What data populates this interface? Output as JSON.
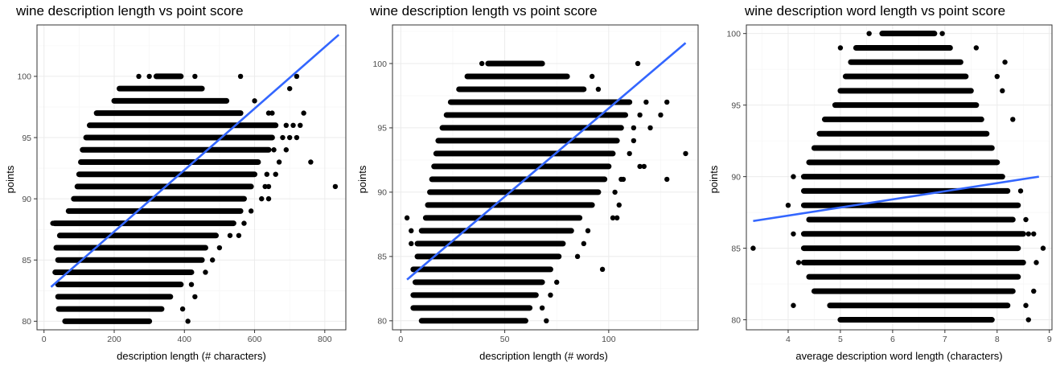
{
  "colors": {
    "points": "#000000",
    "fit_line": "#3366FF"
  },
  "chart_data": [
    {
      "type": "scatter",
      "title": "wine description length vs point score",
      "xlabel": "description length (# characters)",
      "ylabel": "points",
      "xlim": [
        -20,
        860
      ],
      "ylim": [
        79.3,
        104.2
      ],
      "xticks": [
        0,
        200,
        400,
        600,
        800
      ],
      "yticks": [
        80,
        85,
        90,
        95,
        100
      ],
      "grid": true,
      "fit_line": {
        "x": [
          20,
          840
        ],
        "y": [
          82.8,
          103.4
        ]
      },
      "bands": [
        {
          "y": 80,
          "xmin": 60,
          "xmax": 300
        },
        {
          "y": 81,
          "xmin": 42,
          "xmax": 335
        },
        {
          "y": 82,
          "xmin": 40,
          "xmax": 360
        },
        {
          "y": 83,
          "xmin": 40,
          "xmax": 390
        },
        {
          "y": 84,
          "xmin": 32,
          "xmax": 420
        },
        {
          "y": 85,
          "xmin": 40,
          "xmax": 450
        },
        {
          "y": 86,
          "xmin": 35,
          "xmax": 460
        },
        {
          "y": 87,
          "xmin": 45,
          "xmax": 490
        },
        {
          "y": 88,
          "xmin": 30,
          "xmax": 540
        },
        {
          "y": 89,
          "xmin": 70,
          "xmax": 560
        },
        {
          "y": 90,
          "xmin": 85,
          "xmax": 570
        },
        {
          "y": 91,
          "xmin": 95,
          "xmax": 590
        },
        {
          "y": 92,
          "xmin": 100,
          "xmax": 600
        },
        {
          "y": 93,
          "xmin": 105,
          "xmax": 610
        },
        {
          "y": 94,
          "xmin": 110,
          "xmax": 640
        },
        {
          "y": 95,
          "xmin": 120,
          "xmax": 650
        },
        {
          "y": 96,
          "xmin": 130,
          "xmax": 660
        },
        {
          "y": 97,
          "xmin": 150,
          "xmax": 560
        },
        {
          "y": 98,
          "xmin": 200,
          "xmax": 520
        },
        {
          "y": 99,
          "xmin": 215,
          "xmax": 450
        },
        {
          "y": 100,
          "xmin": 320,
          "xmax": 390
        }
      ],
      "points": [
        {
          "x": 25,
          "y": 88
        },
        {
          "x": 35,
          "y": 88
        },
        {
          "x": 45,
          "y": 84
        },
        {
          "x": 410,
          "y": 80
        },
        {
          "x": 395,
          "y": 81
        },
        {
          "x": 430,
          "y": 82
        },
        {
          "x": 420,
          "y": 83
        },
        {
          "x": 460,
          "y": 84
        },
        {
          "x": 480,
          "y": 85
        },
        {
          "x": 500,
          "y": 86
        },
        {
          "x": 530,
          "y": 87
        },
        {
          "x": 555,
          "y": 87
        },
        {
          "x": 570,
          "y": 88
        },
        {
          "x": 590,
          "y": 89
        },
        {
          "x": 620,
          "y": 90
        },
        {
          "x": 640,
          "y": 90
        },
        {
          "x": 630,
          "y": 91
        },
        {
          "x": 635,
          "y": 92
        },
        {
          "x": 660,
          "y": 92
        },
        {
          "x": 670,
          "y": 93
        },
        {
          "x": 655,
          "y": 94
        },
        {
          "x": 690,
          "y": 94
        },
        {
          "x": 680,
          "y": 95
        },
        {
          "x": 700,
          "y": 95
        },
        {
          "x": 690,
          "y": 96
        },
        {
          "x": 710,
          "y": 96
        },
        {
          "x": 730,
          "y": 96
        },
        {
          "x": 640,
          "y": 97
        },
        {
          "x": 650,
          "y": 97
        },
        {
          "x": 740,
          "y": 97
        },
        {
          "x": 600,
          "y": 98
        },
        {
          "x": 700,
          "y": 99
        },
        {
          "x": 430,
          "y": 100
        },
        {
          "x": 560,
          "y": 100
        },
        {
          "x": 720,
          "y": 100
        },
        {
          "x": 270,
          "y": 100
        },
        {
          "x": 300,
          "y": 100
        },
        {
          "x": 760,
          "y": 93
        },
        {
          "x": 830,
          "y": 91
        },
        {
          "x": 640,
          "y": 91
        },
        {
          "x": 720,
          "y": 95
        }
      ]
    },
    {
      "type": "scatter",
      "title": "wine description length vs point score",
      "xlabel": "description length (# words)",
      "ylabel": "points",
      "xlim": [
        -4,
        143
      ],
      "ylim": [
        79.3,
        103.0
      ],
      "xticks": [
        0,
        50,
        100
      ],
      "yticks": [
        80,
        85,
        90,
        95,
        100
      ],
      "grid": true,
      "fit_line": {
        "x": [
          3,
          137
        ],
        "y": [
          83.2,
          101.6
        ]
      },
      "bands": [
        {
          "y": 80,
          "xmin": 10,
          "xmax": 60
        },
        {
          "y": 81,
          "xmin": 6,
          "xmax": 62
        },
        {
          "y": 82,
          "xmin": 6,
          "xmax": 65
        },
        {
          "y": 83,
          "xmin": 7,
          "xmax": 68
        },
        {
          "y": 84,
          "xmin": 6,
          "xmax": 72
        },
        {
          "y": 85,
          "xmin": 8,
          "xmax": 76
        },
        {
          "y": 86,
          "xmin": 8,
          "xmax": 78
        },
        {
          "y": 87,
          "xmin": 10,
          "xmax": 82
        },
        {
          "y": 88,
          "xmin": 12,
          "xmax": 86
        },
        {
          "y": 89,
          "xmin": 13,
          "xmax": 92
        },
        {
          "y": 90,
          "xmin": 14,
          "xmax": 95
        },
        {
          "y": 91,
          "xmin": 15,
          "xmax": 98
        },
        {
          "y": 92,
          "xmin": 16,
          "xmax": 100
        },
        {
          "y": 93,
          "xmin": 17,
          "xmax": 102
        },
        {
          "y": 94,
          "xmin": 18,
          "xmax": 104
        },
        {
          "y": 95,
          "xmin": 20,
          "xmax": 106
        },
        {
          "y": 96,
          "xmin": 22,
          "xmax": 108
        },
        {
          "y": 97,
          "xmin": 24,
          "xmax": 110
        },
        {
          "y": 98,
          "xmin": 28,
          "xmax": 88
        },
        {
          "y": 99,
          "xmin": 32,
          "xmax": 80
        },
        {
          "y": 100,
          "xmin": 42,
          "xmax": 68
        }
      ],
      "points": [
        {
          "x": 3,
          "y": 88
        },
        {
          "x": 5,
          "y": 86
        },
        {
          "x": 5,
          "y": 87
        },
        {
          "x": 70,
          "y": 80
        },
        {
          "x": 68,
          "y": 81
        },
        {
          "x": 72,
          "y": 82
        },
        {
          "x": 75,
          "y": 83
        },
        {
          "x": 97,
          "y": 84
        },
        {
          "x": 85,
          "y": 85
        },
        {
          "x": 88,
          "y": 86
        },
        {
          "x": 90,
          "y": 87
        },
        {
          "x": 102,
          "y": 88
        },
        {
          "x": 105,
          "y": 89
        },
        {
          "x": 103,
          "y": 90
        },
        {
          "x": 107,
          "y": 91
        },
        {
          "x": 115,
          "y": 92
        },
        {
          "x": 110,
          "y": 93
        },
        {
          "x": 112,
          "y": 94
        },
        {
          "x": 112,
          "y": 95
        },
        {
          "x": 120,
          "y": 95
        },
        {
          "x": 115,
          "y": 96
        },
        {
          "x": 125,
          "y": 96
        },
        {
          "x": 118,
          "y": 97
        },
        {
          "x": 128,
          "y": 97
        },
        {
          "x": 95,
          "y": 98
        },
        {
          "x": 92,
          "y": 99
        },
        {
          "x": 114,
          "y": 100
        },
        {
          "x": 137,
          "y": 93
        },
        {
          "x": 128,
          "y": 91
        },
        {
          "x": 104,
          "y": 88
        },
        {
          "x": 117,
          "y": 92
        },
        {
          "x": 106,
          "y": 91
        },
        {
          "x": 39,
          "y": 100
        },
        {
          "x": 64,
          "y": 93
        },
        {
          "x": 106,
          "y": 95
        }
      ]
    },
    {
      "type": "scatter",
      "title": "wine description word length vs point score",
      "xlabel": "average description word length (characters)",
      "ylabel": "points",
      "xlim": [
        3.2,
        9.05
      ],
      "ylim": [
        79.3,
        100.6
      ],
      "xticks": [
        4,
        5,
        6,
        7,
        8,
        9
      ],
      "yticks": [
        80,
        85,
        90,
        95,
        100
      ],
      "grid": true,
      "fit_line": {
        "x": [
          3.33,
          8.8
        ],
        "y": [
          86.9,
          90.0
        ]
      },
      "bands": [
        {
          "y": 80,
          "xmin": 5.0,
          "xmax": 7.9
        },
        {
          "y": 81,
          "xmin": 4.8,
          "xmax": 8.2
        },
        {
          "y": 82,
          "xmin": 4.5,
          "xmax": 8.3
        },
        {
          "y": 83,
          "xmin": 4.4,
          "xmax": 8.4
        },
        {
          "y": 84,
          "xmin": 4.3,
          "xmax": 8.5
        },
        {
          "y": 85,
          "xmin": 4.3,
          "xmax": 8.4
        },
        {
          "y": 86,
          "xmin": 4.3,
          "xmax": 8.5
        },
        {
          "y": 87,
          "xmin": 4.4,
          "xmax": 8.3
        },
        {
          "y": 88,
          "xmin": 4.3,
          "xmax": 8.4
        },
        {
          "y": 89,
          "xmin": 4.3,
          "xmax": 8.2
        },
        {
          "y": 90,
          "xmin": 4.3,
          "xmax": 8.1
        },
        {
          "y": 91,
          "xmin": 4.4,
          "xmax": 8.0
        },
        {
          "y": 92,
          "xmin": 4.5,
          "xmax": 7.9
        },
        {
          "y": 93,
          "xmin": 4.6,
          "xmax": 7.8
        },
        {
          "y": 94,
          "xmin": 4.7,
          "xmax": 7.7
        },
        {
          "y": 95,
          "xmin": 4.9,
          "xmax": 7.6
        },
        {
          "y": 96,
          "xmin": 5.0,
          "xmax": 7.5
        },
        {
          "y": 97,
          "xmin": 5.1,
          "xmax": 7.4
        },
        {
          "y": 98,
          "xmin": 5.2,
          "xmax": 7.3
        },
        {
          "y": 99,
          "xmin": 5.3,
          "xmax": 7.1
        },
        {
          "y": 100,
          "xmin": 5.8,
          "xmax": 6.8
        }
      ],
      "points": [
        {
          "x": 3.33,
          "y": 85
        },
        {
          "x": 4.1,
          "y": 81
        },
        {
          "x": 4.2,
          "y": 84
        },
        {
          "x": 4.1,
          "y": 86
        },
        {
          "x": 4.0,
          "y": 88
        },
        {
          "x": 4.1,
          "y": 90
        },
        {
          "x": 8.6,
          "y": 80
        },
        {
          "x": 8.55,
          "y": 81
        },
        {
          "x": 8.7,
          "y": 82
        },
        {
          "x": 8.75,
          "y": 84
        },
        {
          "x": 8.88,
          "y": 85
        },
        {
          "x": 8.6,
          "y": 86
        },
        {
          "x": 8.7,
          "y": 86
        },
        {
          "x": 8.55,
          "y": 87
        },
        {
          "x": 8.45,
          "y": 89
        },
        {
          "x": 8.15,
          "y": 98
        },
        {
          "x": 7.6,
          "y": 99
        },
        {
          "x": 5.0,
          "y": 99
        },
        {
          "x": 5.55,
          "y": 100
        },
        {
          "x": 6.95,
          "y": 100
        },
        {
          "x": 8.3,
          "y": 94
        },
        {
          "x": 4.75,
          "y": 83
        },
        {
          "x": 8.1,
          "y": 96
        },
        {
          "x": 8.0,
          "y": 97
        }
      ]
    }
  ]
}
